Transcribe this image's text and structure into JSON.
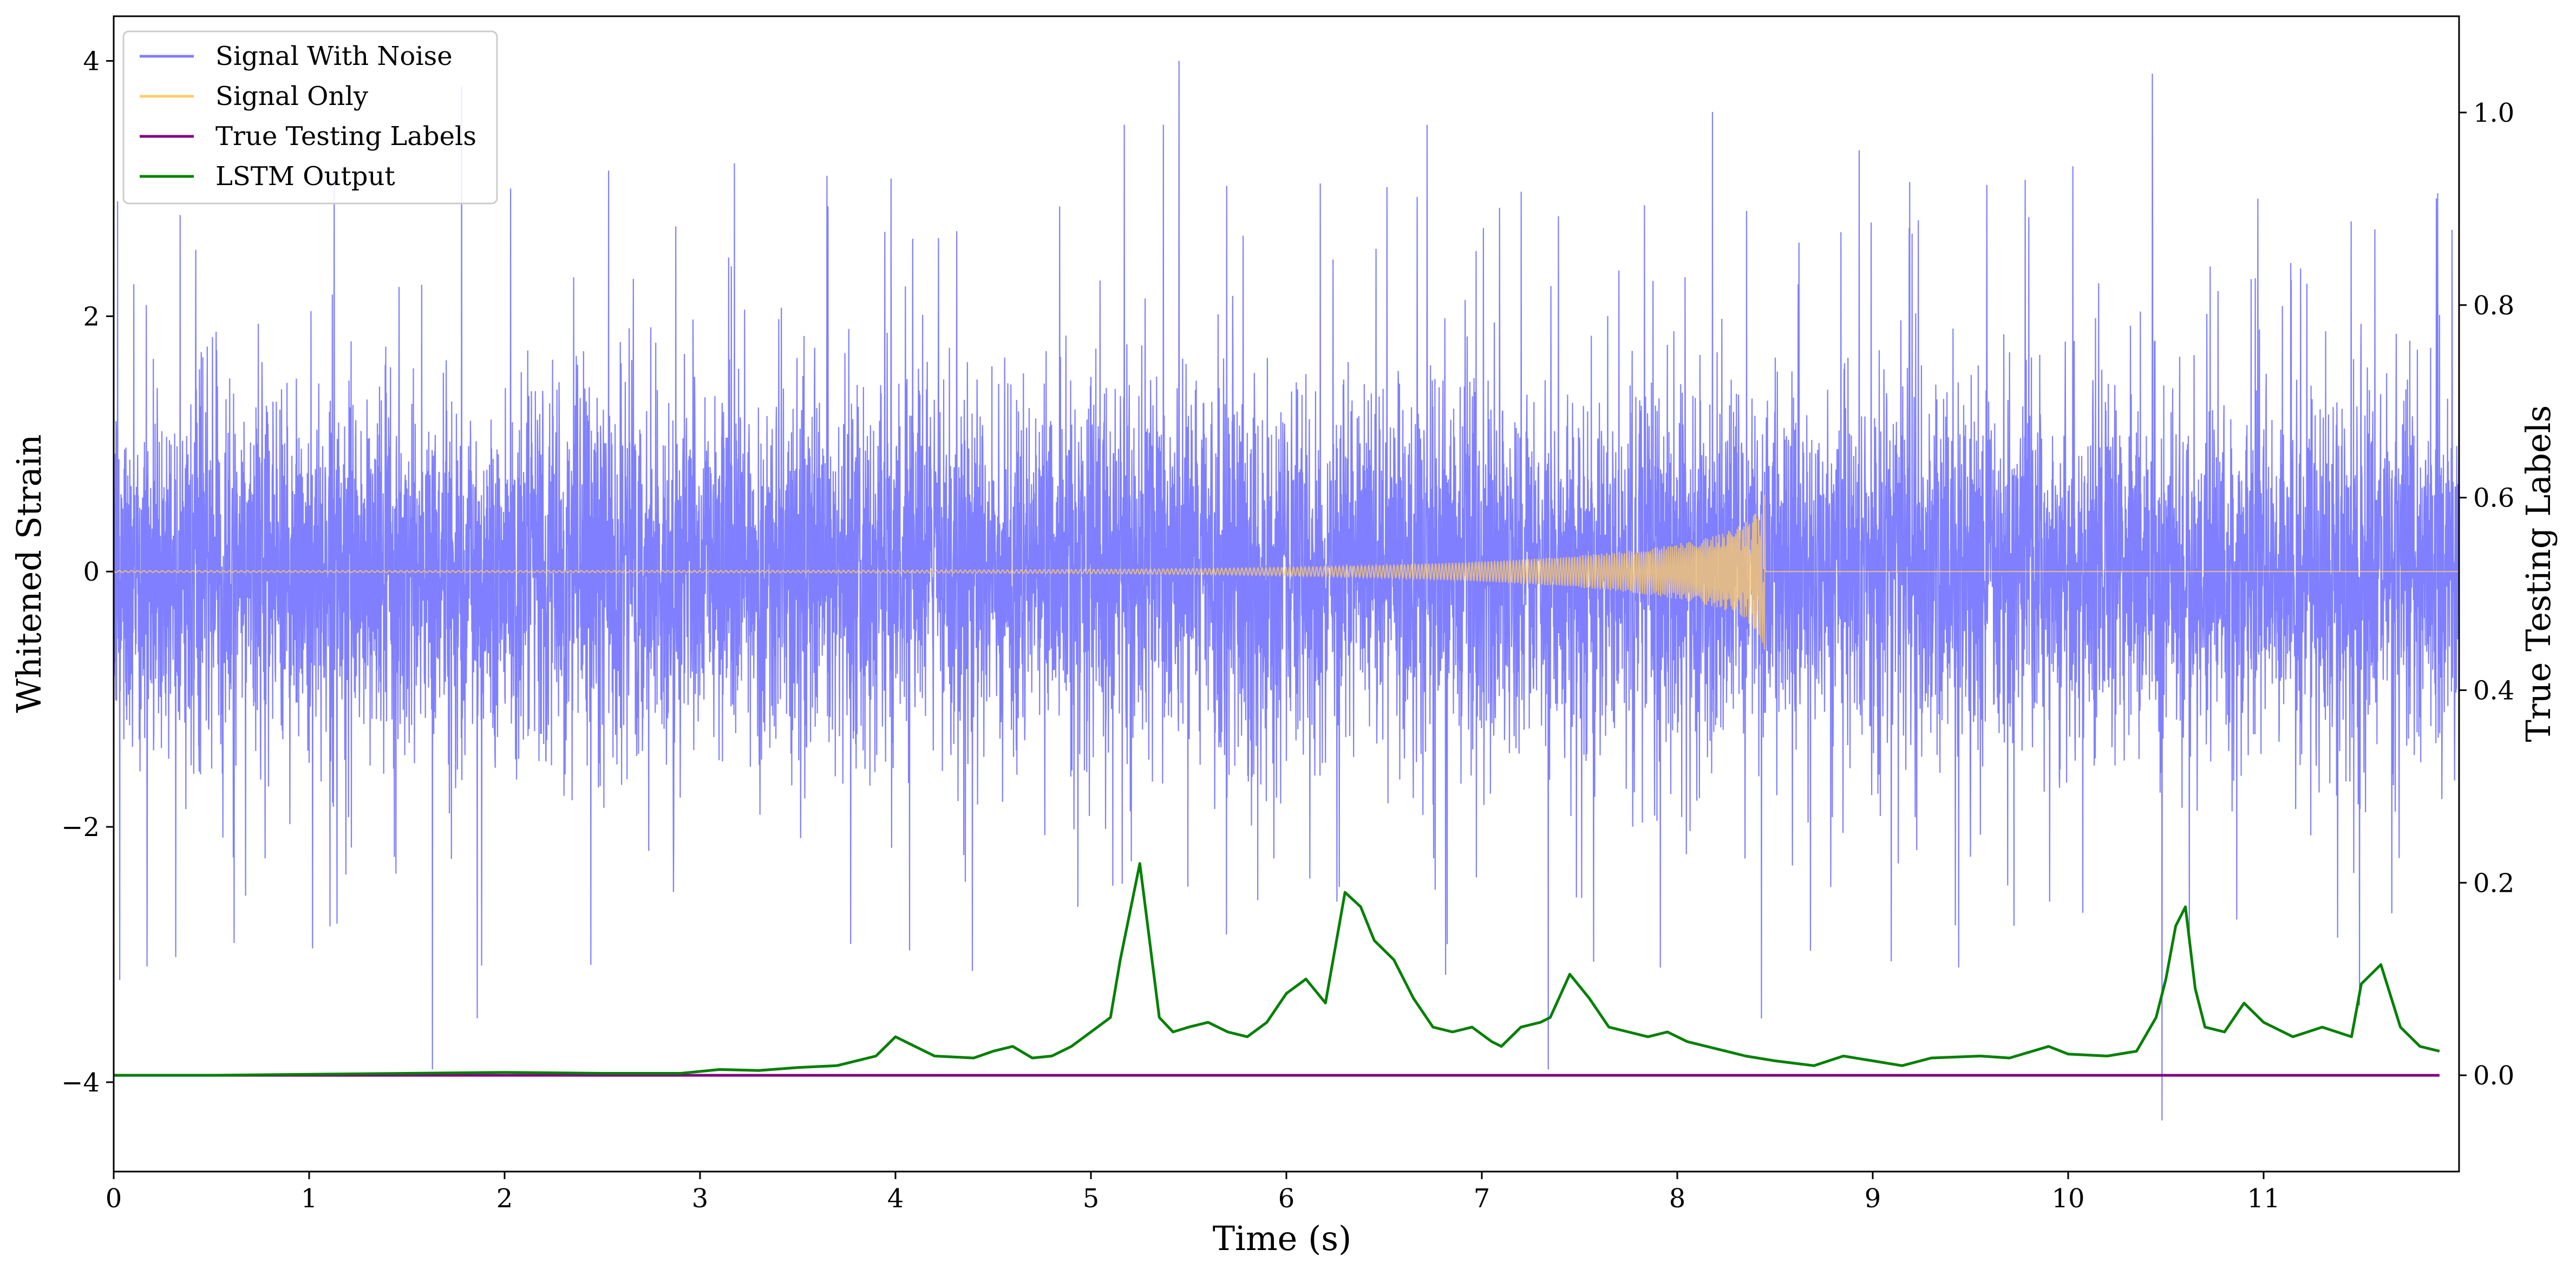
{
  "chart_data": {
    "type": "line",
    "xlabel": "Time (s)",
    "ylabel": "Whitened Strain",
    "y2label": "True Testing Labels",
    "xlim": [
      0,
      12
    ],
    "ylim": [
      -4.7,
      4.35
    ],
    "y2lim": [
      -0.1,
      1.1
    ],
    "xticks": [
      "0",
      "1",
      "2",
      "3",
      "4",
      "5",
      "6",
      "7",
      "8",
      "9",
      "10",
      "11"
    ],
    "yticks": [
      "−4",
      "−2",
      "0",
      "2",
      "4"
    ],
    "y2ticks": [
      "0.0",
      "0.2",
      "0.4",
      "0.6",
      "0.8",
      "1.0"
    ],
    "grid": false,
    "legend_position": "top-left",
    "series": [
      {
        "name": "Signal With Noise",
        "axis": "left",
        "color": "#7f7fff",
        "description_values": "high-frequency noise, approx. ±1 with spikes to about ±3",
        "spikes": [
          [
            0.02,
            2.9
          ],
          [
            0.03,
            -3.2
          ],
          [
            1.63,
            -3.9
          ],
          [
            1.78,
            3.8
          ],
          [
            1.86,
            -3.5
          ],
          [
            2.03,
            3.0
          ],
          [
            3.65,
            3.1
          ],
          [
            5.17,
            3.5
          ],
          [
            5.37,
            3.5
          ],
          [
            5.45,
            4.0
          ],
          [
            6.72,
            3.5
          ],
          [
            7.34,
            -3.9
          ],
          [
            8.18,
            3.6
          ],
          [
            8.43,
            -3.5
          ],
          [
            8.93,
            3.3
          ],
          [
            10.43,
            3.9
          ],
          [
            10.48,
            -4.3
          ],
          [
            11.49,
            -3.4
          ]
        ]
      },
      {
        "name": "Signal Only",
        "axis": "left",
        "color": "#ffcc66",
        "description_values": "chirp growing from near 0 to about ±0.65, ending at 8.45 s, zero afterwards",
        "chirp_end": 8.45,
        "chirp_peak": 0.65
      },
      {
        "name": "True Testing Labels",
        "axis": "right",
        "color": "#800080",
        "x": [
          0,
          11.9
        ],
        "y": [
          0.0,
          0.0
        ]
      },
      {
        "name": "LSTM Output",
        "axis": "right",
        "color": "#008000",
        "x": [
          0,
          0.5,
          1,
          1.5,
          2,
          2.5,
          2.9,
          3.1,
          3.3,
          3.5,
          3.7,
          3.8,
          3.9,
          4.0,
          4.1,
          4.2,
          4.4,
          4.5,
          4.6,
          4.7,
          4.8,
          4.9,
          5.0,
          5.1,
          5.15,
          5.25,
          5.35,
          5.42,
          5.5,
          5.6,
          5.7,
          5.8,
          5.9,
          6.0,
          6.1,
          6.2,
          6.3,
          6.38,
          6.45,
          6.55,
          6.65,
          6.75,
          6.85,
          6.95,
          7.05,
          7.1,
          7.2,
          7.3,
          7.35,
          7.45,
          7.55,
          7.65,
          7.75,
          7.85,
          7.95,
          8.05,
          8.15,
          8.25,
          8.35,
          8.5,
          8.7,
          8.85,
          9.0,
          9.15,
          9.3,
          9.55,
          9.7,
          9.9,
          10.0,
          10.2,
          10.35,
          10.45,
          10.5,
          10.55,
          10.6,
          10.65,
          10.7,
          10.8,
          10.9,
          11.0,
          11.15,
          11.3,
          11.45,
          11.5,
          11.6,
          11.7,
          11.8,
          11.9
        ],
        "y": [
          0.0,
          0.0,
          0.001,
          0.002,
          0.003,
          0.002,
          0.002,
          0.006,
          0.005,
          0.008,
          0.01,
          0.015,
          0.02,
          0.04,
          0.03,
          0.02,
          0.018,
          0.025,
          0.03,
          0.018,
          0.02,
          0.03,
          0.045,
          0.06,
          0.12,
          0.22,
          0.06,
          0.045,
          0.05,
          0.055,
          0.045,
          0.04,
          0.055,
          0.085,
          0.1,
          0.075,
          0.19,
          0.175,
          0.14,
          0.12,
          0.08,
          0.05,
          0.045,
          0.05,
          0.035,
          0.03,
          0.05,
          0.055,
          0.06,
          0.105,
          0.08,
          0.05,
          0.045,
          0.04,
          0.045,
          0.035,
          0.03,
          0.025,
          0.02,
          0.015,
          0.01,
          0.02,
          0.015,
          0.01,
          0.018,
          0.02,
          0.018,
          0.03,
          0.022,
          0.02,
          0.025,
          0.06,
          0.1,
          0.155,
          0.175,
          0.09,
          0.05,
          0.045,
          0.075,
          0.055,
          0.04,
          0.05,
          0.04,
          0.095,
          0.115,
          0.05,
          0.03,
          0.025
        ]
      }
    ]
  }
}
